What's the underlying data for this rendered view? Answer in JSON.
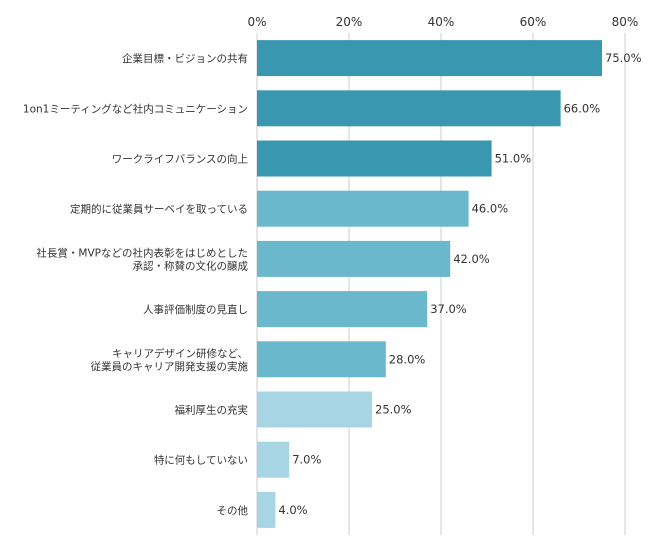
{
  "chart_data": {
    "type": "bar",
    "orientation": "horizontal",
    "title": "",
    "xlabel": "",
    "ylabel": "",
    "xlim": [
      0,
      80
    ],
    "x_ticks": [
      0,
      20,
      40,
      60,
      80
    ],
    "x_tick_labels": [
      "0%",
      "20%",
      "40%",
      "60%",
      "80%"
    ],
    "grid": true,
    "categories": [
      [
        "企業目標・ビジョンの共有"
      ],
      [
        "1on1ミーティングなど社内コミュニケーション"
      ],
      [
        "ワークライフバランスの向上"
      ],
      [
        "定期的に従業員サーベイを取っている"
      ],
      [
        "社長賞・MVPなどの社内表彰をはじめとした",
        "承認・称賛の文化の醸成"
      ],
      [
        "人事評価制度の見直し"
      ],
      [
        "キャリアデザイン研修など、",
        "従業員のキャリア開発支援の実施"
      ],
      [
        "福利厚生の充実"
      ],
      [
        "特に何もしていない"
      ],
      [
        "その他"
      ]
    ],
    "values": [
      75.0,
      66.0,
      51.0,
      46.0,
      42.0,
      37.0,
      28.0,
      25.0,
      7.0,
      4.0
    ],
    "value_labels": [
      "75.0%",
      "66.0%",
      "51.0%",
      "46.0%",
      "42.0%",
      "37.0%",
      "28.0%",
      "25.0%",
      "7.0%",
      "4.0%"
    ],
    "bar_colors": [
      "#3a97b0",
      "#3a97b0",
      "#3a97b0",
      "#6bb7cc",
      "#6bb7cc",
      "#6bb7cc",
      "#6bb7cc",
      "#a7d5e3",
      "#a7d5e3",
      "#a7d5e3"
    ],
    "grid_color": "#cccccc"
  }
}
